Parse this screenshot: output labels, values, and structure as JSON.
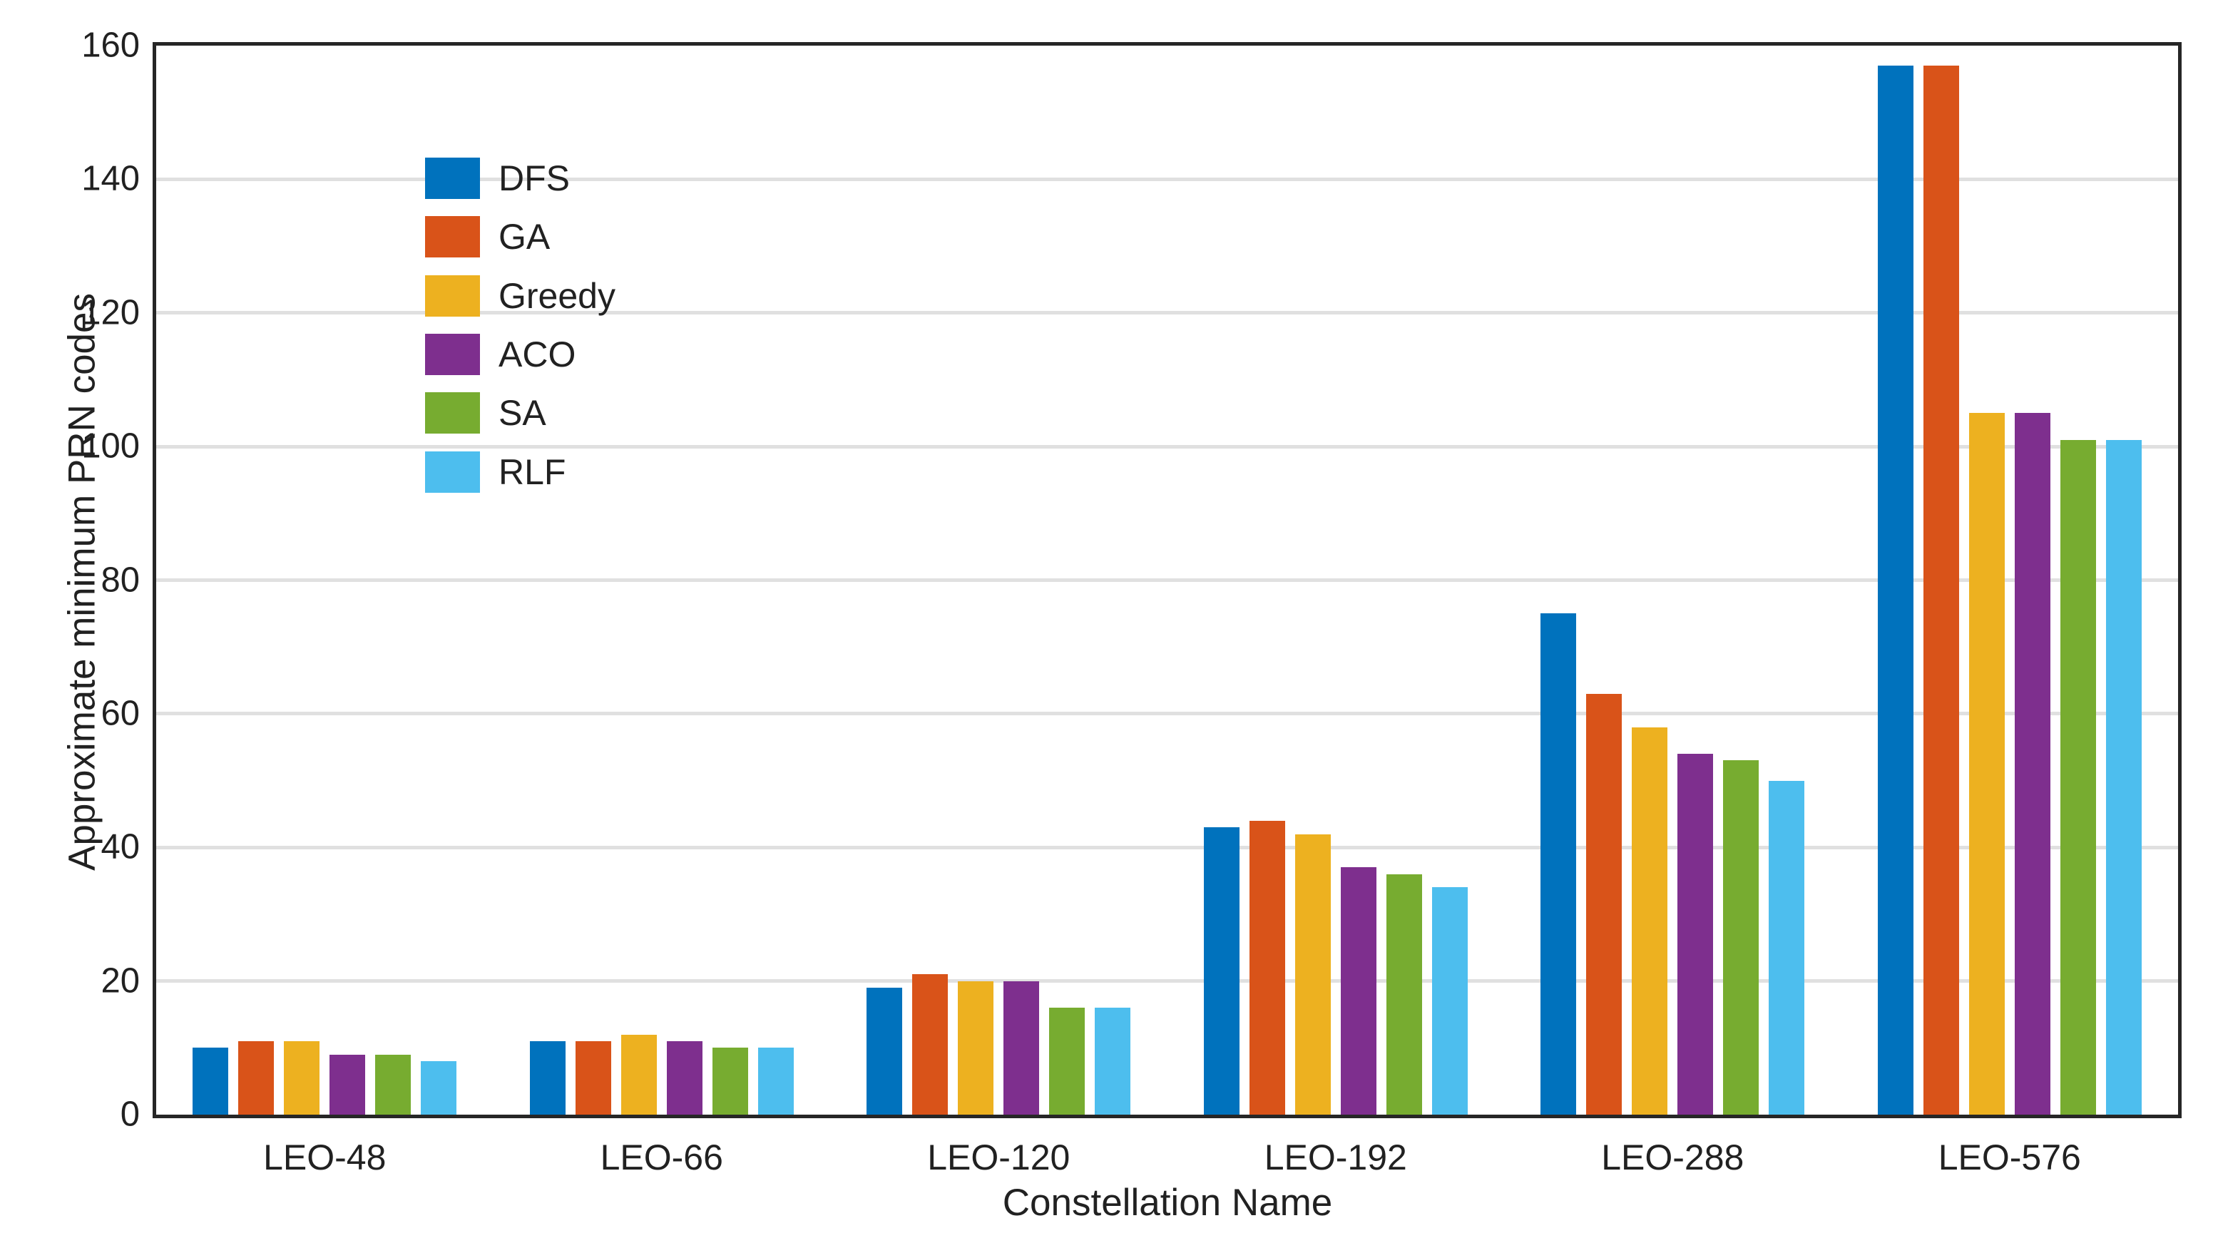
{
  "figure": {
    "background_color": "#ffffff",
    "frame_color": "#262626",
    "grid_color": "#e0e0e0",
    "text_color": "#212121"
  },
  "chart_data": {
    "type": "bar",
    "title": "",
    "xlabel": "Constellation Name",
    "ylabel": "Approximate minimum PRN codes",
    "categories": [
      "LEO-48",
      "LEO-66",
      "LEO-120",
      "LEO-192",
      "LEO-288",
      "LEO-576"
    ],
    "series": [
      {
        "name": "DFS",
        "color": "#0072BD",
        "values": [
          10,
          11,
          19,
          43,
          75,
          157
        ]
      },
      {
        "name": "GA",
        "color": "#D95319",
        "values": [
          11,
          11,
          21,
          44,
          63,
          157
        ]
      },
      {
        "name": "Greedy",
        "color": "#EDB120",
        "values": [
          11,
          12,
          20,
          42,
          58,
          105
        ]
      },
      {
        "name": "ACO",
        "color": "#7E2F8E",
        "values": [
          9,
          11,
          20,
          37,
          54,
          105
        ]
      },
      {
        "name": "SA",
        "color": "#77AC30",
        "values": [
          9,
          10,
          16,
          36,
          53,
          101
        ]
      },
      {
        "name": "RLF",
        "color": "#4DBEEE",
        "values": [
          8,
          10,
          16,
          34,
          50,
          101
        ]
      }
    ],
    "ylim": [
      0,
      160
    ],
    "yticks": [
      0,
      20,
      40,
      60,
      80,
      100,
      120,
      140,
      160
    ],
    "grid": "horizontal",
    "legend_position": "upper-left-inside",
    "legend_entries": [
      "DFS",
      "GA",
      "Greedy",
      "ACO",
      "SA",
      "RLF"
    ]
  }
}
